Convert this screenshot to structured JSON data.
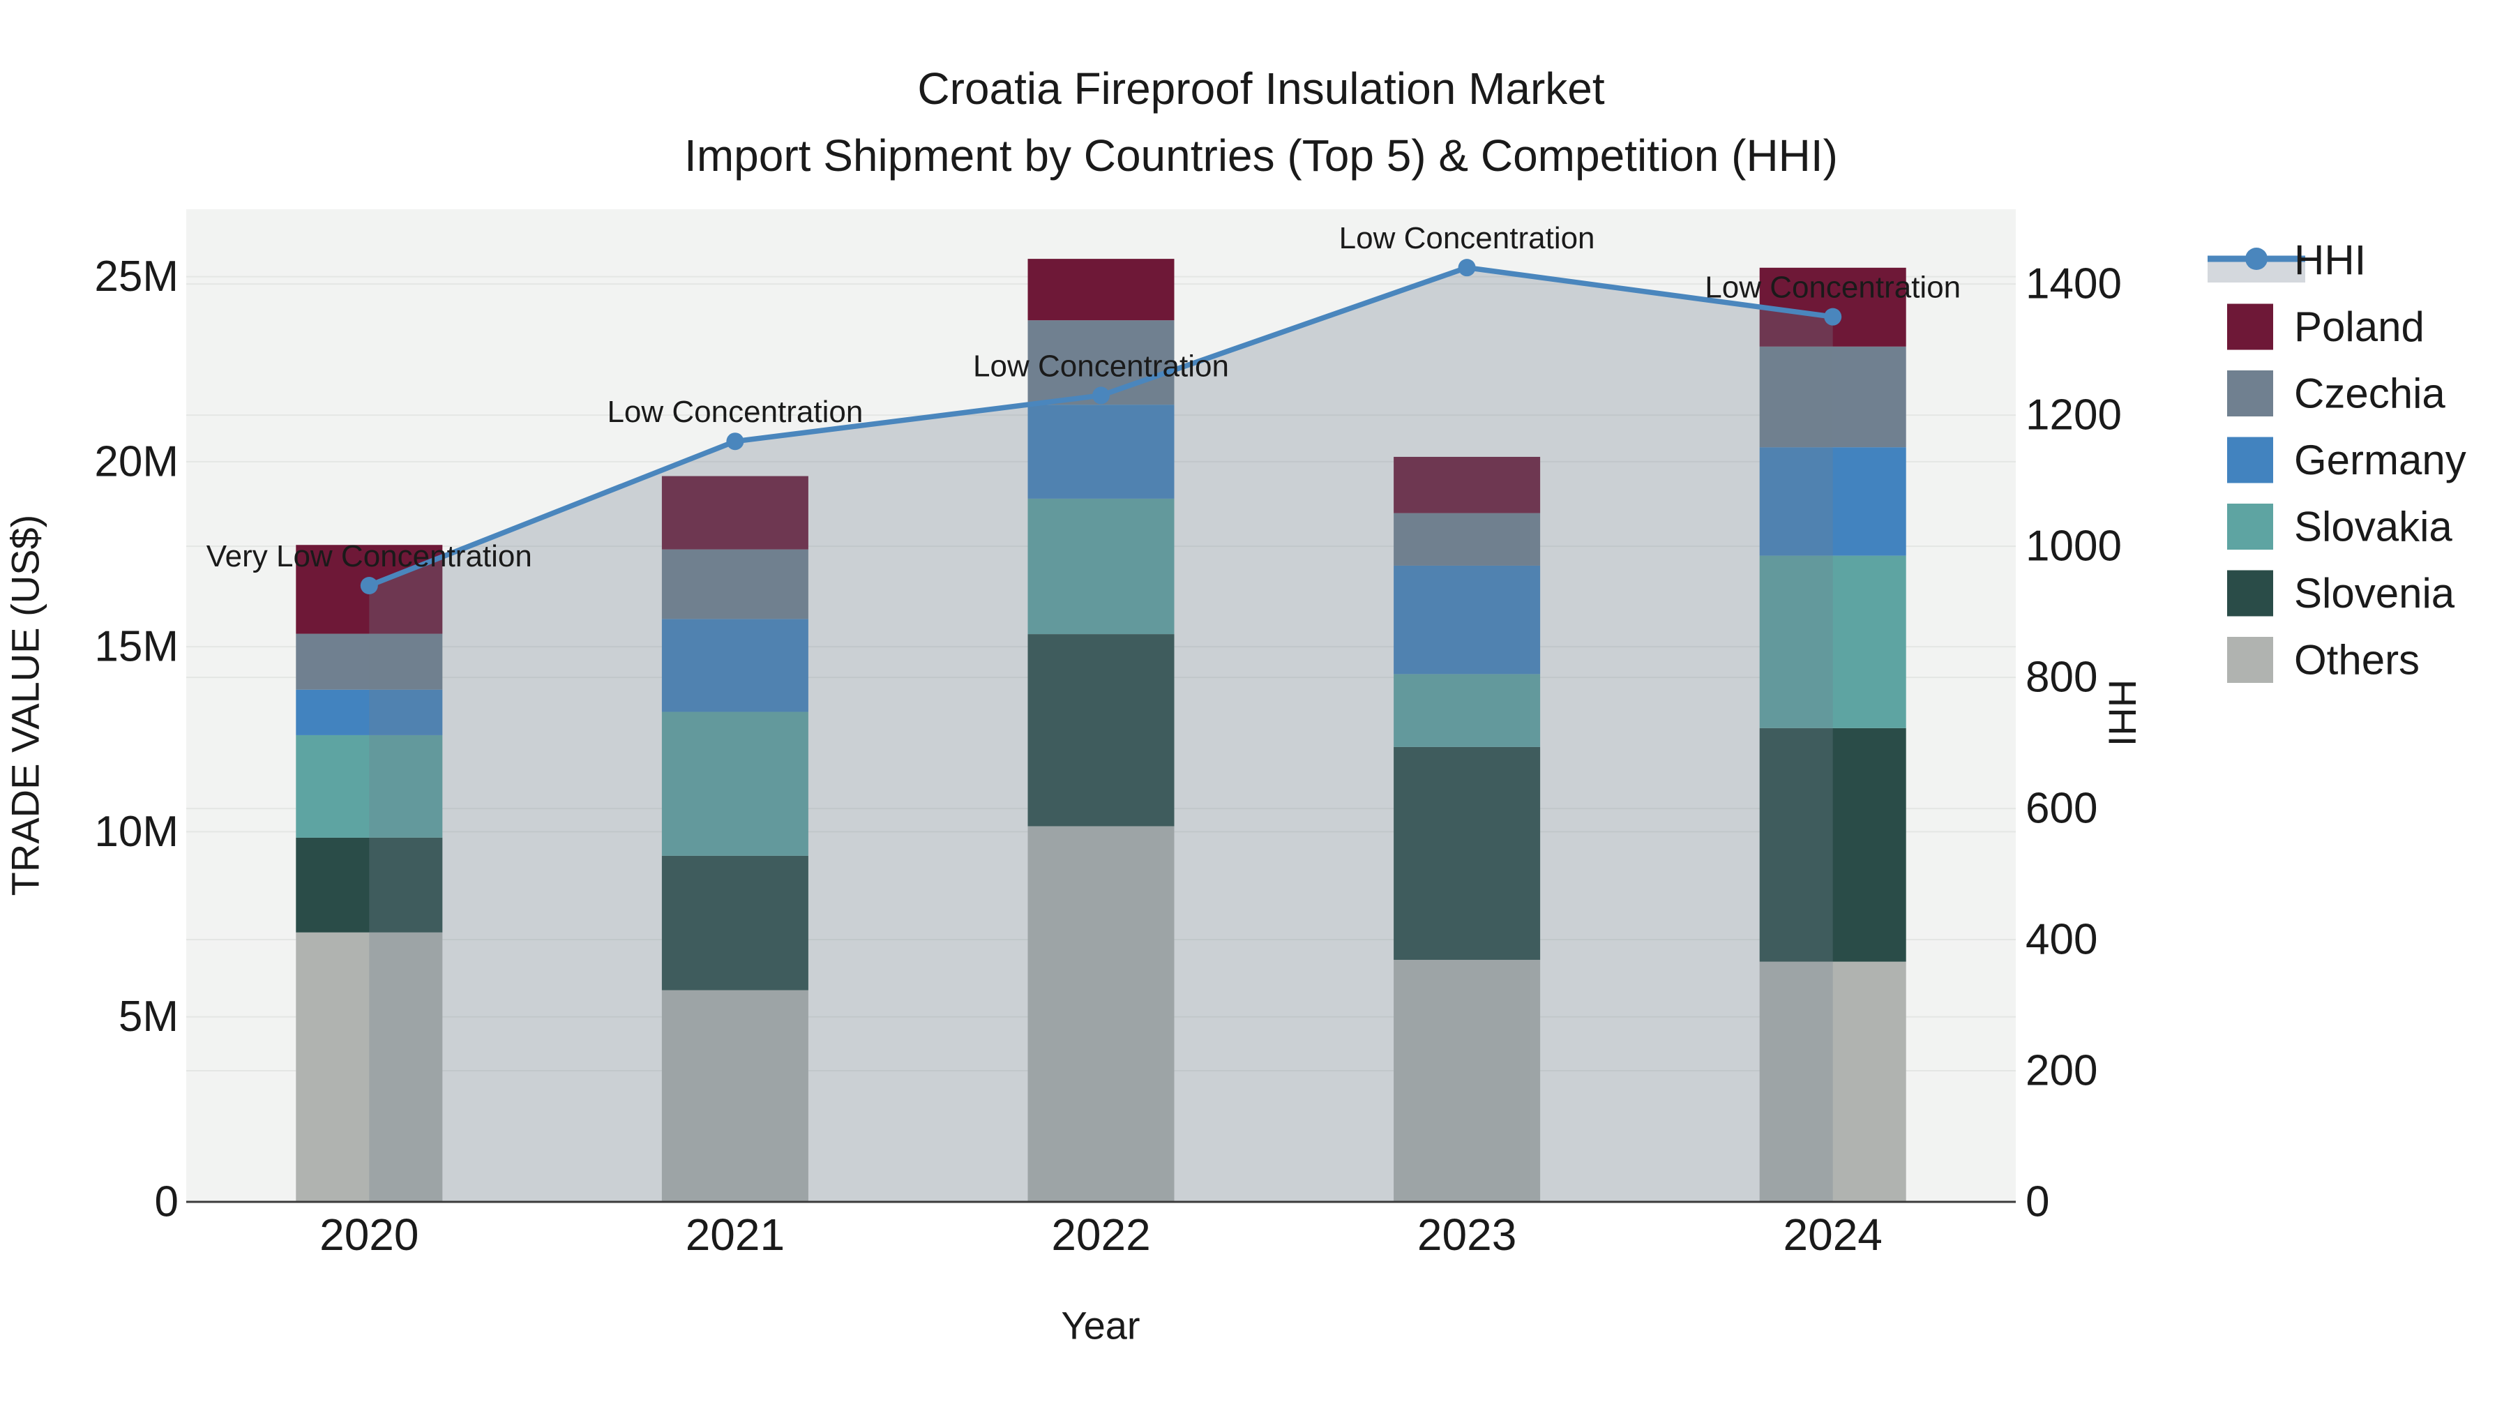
{
  "title": {
    "line1": "Croatia Fireproof Insulation Market",
    "line2": "Import Shipment by Countries (Top 5) & Competition (HHI)"
  },
  "axes": {
    "y_left": {
      "title": "TRADE VALUE (US$)",
      "unit": "US$ millions",
      "ticks": [
        {
          "value": 0,
          "label": "0"
        },
        {
          "value": 5,
          "label": "5M"
        },
        {
          "value": 10,
          "label": "10M"
        },
        {
          "value": 15,
          "label": "15M"
        },
        {
          "value": 20,
          "label": "20M"
        },
        {
          "value": 25,
          "label": "25M"
        }
      ],
      "max": 26.82
    },
    "y_right": {
      "title": "HHI",
      "ticks": [
        {
          "value": 0,
          "label": "0"
        },
        {
          "value": 200,
          "label": "200"
        },
        {
          "value": 400,
          "label": "400"
        },
        {
          "value": 600,
          "label": "600"
        },
        {
          "value": 800,
          "label": "800"
        },
        {
          "value": 1000,
          "label": "1000"
        },
        {
          "value": 1200,
          "label": "1200"
        },
        {
          "value": 1400,
          "label": "1400"
        }
      ],
      "max": 1514
    },
    "x": {
      "title": "Year"
    }
  },
  "chart_data": {
    "type": "bar",
    "subtype": "stacked bars + line on secondary axis",
    "categories": [
      "2020",
      "2021",
      "2022",
      "2023",
      "2024"
    ],
    "bar_value_unit": "million US$",
    "stack_order_bottom_to_top": [
      "Others",
      "Slovenia",
      "Slovakia",
      "Germany",
      "Czechia",
      "Poland"
    ],
    "series": [
      {
        "name": "Poland",
        "type": "bar",
        "color": "#6e1837",
        "values": [
          2.4,
          1.98,
          1.66,
          1.52,
          2.13
        ]
      },
      {
        "name": "Czechia",
        "type": "bar",
        "color": "#708090",
        "values": [
          1.51,
          1.88,
          2.28,
          1.42,
          2.72
        ]
      },
      {
        "name": "Germany",
        "type": "bar",
        "color": "#4283bf",
        "values": [
          1.23,
          2.51,
          2.54,
          2.93,
          2.93
        ]
      },
      {
        "name": "Slovakia",
        "type": "bar",
        "color": "#5ea4a2",
        "values": [
          2.77,
          3.89,
          3.66,
          1.97,
          4.66
        ]
      },
      {
        "name": "Slovenia",
        "type": "bar",
        "color": "#2a4c48",
        "values": [
          2.56,
          3.63,
          5.19,
          5.75,
          6.31
        ]
      },
      {
        "name": "Others",
        "type": "bar",
        "color": "#b0b3b0",
        "values": [
          7.28,
          5.72,
          10.15,
          6.54,
          6.49
        ]
      },
      {
        "name": "HHI",
        "type": "line",
        "axis": "right",
        "color": "#4a86bd",
        "area_fill": "rgba(112,128,144,0.30)",
        "values": [
          940,
          1160,
          1230,
          1425,
          1350
        ]
      }
    ],
    "bar_totals": [
      17.75,
      19.61,
      25.48,
      20.13,
      25.24
    ],
    "annotations": [
      {
        "x": "2020",
        "text": "Very Low Concentration"
      },
      {
        "x": "2021",
        "text": "Low Concentration"
      },
      {
        "x": "2022",
        "text": "Low Concentration"
      },
      {
        "x": "2023",
        "text": "Low Concentration"
      },
      {
        "x": "2024",
        "text": "Low Concentration"
      }
    ],
    "legend_position": "right",
    "grid": true
  },
  "legend": {
    "items": [
      {
        "label": "HHI",
        "icon": "line-marker"
      },
      {
        "label": "Poland",
        "icon": "square"
      },
      {
        "label": "Czechia",
        "icon": "square"
      },
      {
        "label": "Germany",
        "icon": "square"
      },
      {
        "label": "Slovakia",
        "icon": "square"
      },
      {
        "label": "Slovenia",
        "icon": "square"
      },
      {
        "label": "Others",
        "icon": "square"
      }
    ]
  },
  "colors": {
    "plot_background": "#f2f3f2",
    "paper_background": "#ffffff",
    "gridline": "#e4e6e4",
    "axis_line": "#3b3b3b",
    "text": "#1a1a1a",
    "hhi_line": "#4a86bd",
    "hhi_area": "rgba(112,128,144,0.30)",
    "legend_hhi_band": "#d4d8dd"
  }
}
